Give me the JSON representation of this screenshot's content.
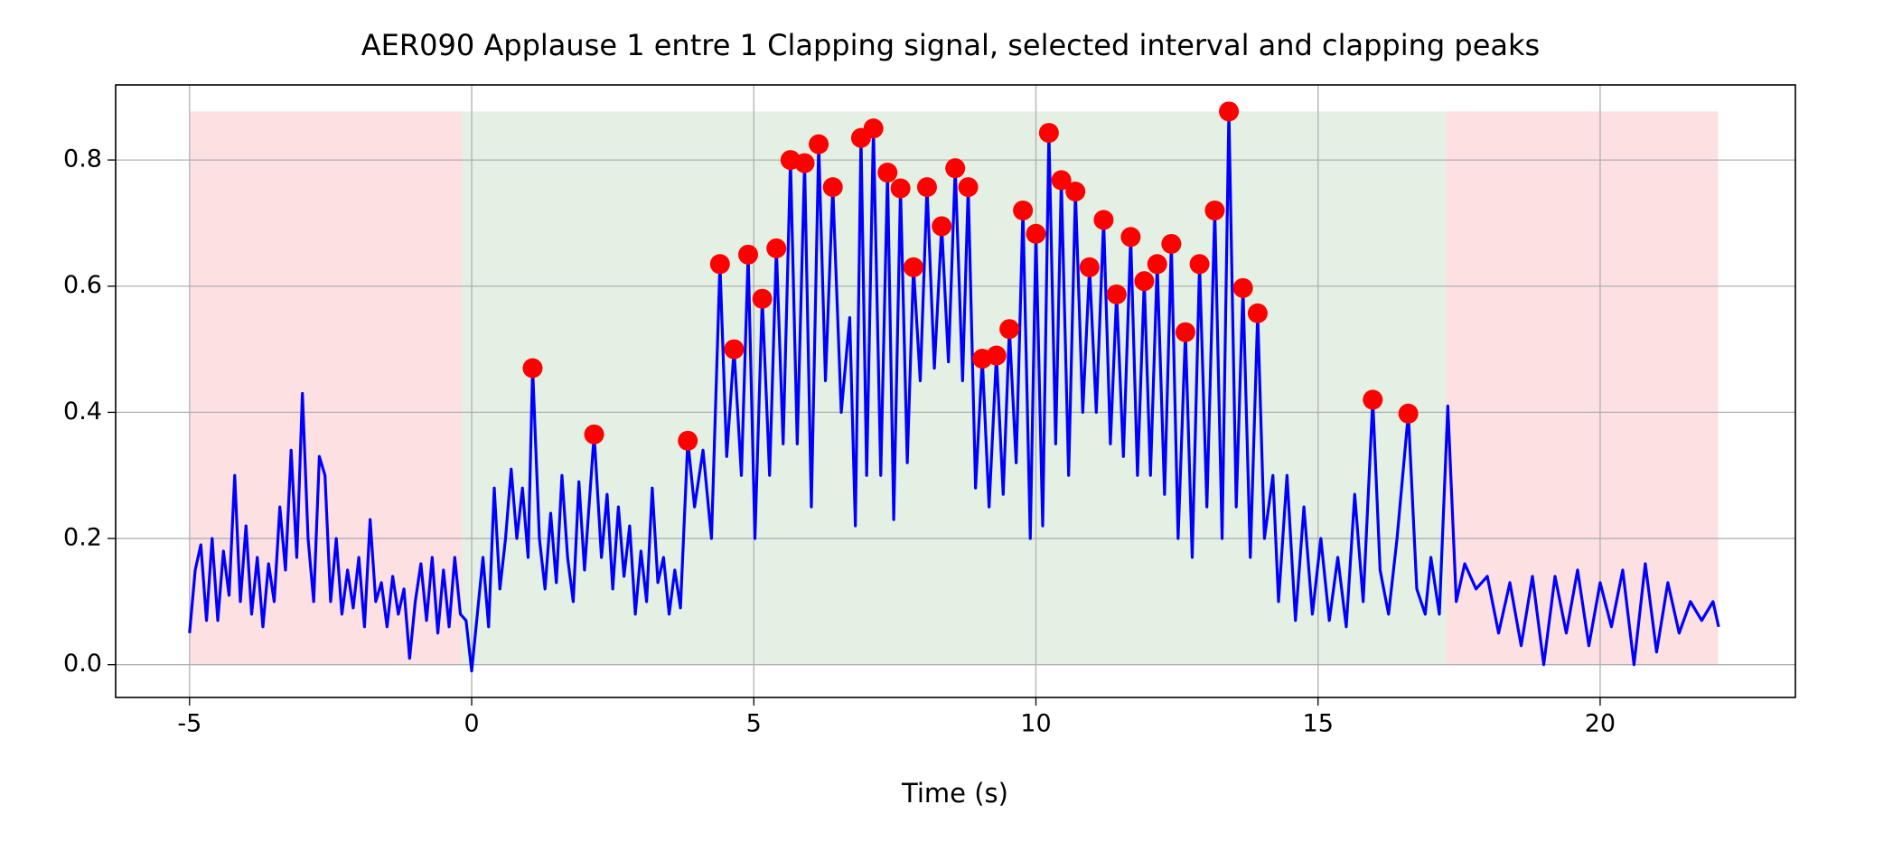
{
  "chart_data": {
    "type": "line",
    "title": "AER090 Applause 1 entre 1 Clapping signal, selected interval and clapping peaks",
    "xlabel": "Time (s)",
    "xlim": [
      -6.31,
      23.46
    ],
    "ylim": [
      -0.052,
      0.919
    ],
    "xticks": [
      -5,
      0,
      5,
      10,
      15,
      20
    ],
    "yticks": [
      {
        "value": 0,
        "label": "0.0"
      },
      0.2,
      0.4,
      0.6,
      0.8
    ],
    "grid": true,
    "shaded_regions": [
      {
        "x": [
          -5,
          -0.17
        ],
        "y": [
          0,
          0.877
        ],
        "color": "#fde0e2"
      },
      {
        "x": [
          -0.17,
          17.27
        ],
        "y": [
          0,
          0.877
        ],
        "color": "#e4f0e3"
      },
      {
        "x": [
          17.27,
          22.09
        ],
        "y": [
          0,
          0.877
        ],
        "color": "#fde0e2"
      }
    ],
    "series": [
      {
        "type": "line",
        "color": "#0000ff",
        "x": [
          -5,
          -4.9,
          -4.8,
          -4.7,
          -4.6,
          -4.5,
          -4.4,
          -4.3,
          -4.2,
          -4.1,
          -4.0,
          -3.9,
          -3.8,
          -3.7,
          -3.6,
          -3.5,
          -3.4,
          -3.3,
          -3.2,
          -3.1,
          -3.0,
          -2.9,
          -2.8,
          -2.7,
          -2.6,
          -2.5,
          -2.4,
          -2.3,
          -2.2,
          -2.1,
          -2.0,
          -1.9,
          -1.8,
          -1.7,
          -1.6,
          -1.5,
          -1.4,
          -1.3,
          -1.2,
          -1.1,
          -1.0,
          -0.9,
          -0.8,
          -0.7,
          -0.6,
          -0.5,
          -0.4,
          -0.3,
          -0.2,
          -0.1,
          0.0,
          0.1,
          0.2,
          0.3,
          0.4,
          0.5,
          0.6,
          0.7,
          0.8,
          0.9,
          1.0,
          1.08,
          1.2,
          1.3,
          1.4,
          1.5,
          1.6,
          1.7,
          1.8,
          1.9,
          2.0,
          2.17,
          2.3,
          2.4,
          2.5,
          2.6,
          2.7,
          2.8,
          2.9,
          3.0,
          3.1,
          3.2,
          3.3,
          3.4,
          3.5,
          3.6,
          3.7,
          3.83,
          3.95,
          4.1,
          4.25,
          4.4,
          4.52,
          4.65,
          4.78,
          4.9,
          5.02,
          5.15,
          5.28,
          5.4,
          5.52,
          5.65,
          5.77,
          5.9,
          6.02,
          6.15,
          6.27,
          6.4,
          6.55,
          6.7,
          6.8,
          6.9,
          7.0,
          7.12,
          7.25,
          7.37,
          7.48,
          7.6,
          7.72,
          7.83,
          7.95,
          8.07,
          8.2,
          8.33,
          8.45,
          8.57,
          8.7,
          8.8,
          8.93,
          9.05,
          9.17,
          9.3,
          9.42,
          9.53,
          9.65,
          9.77,
          9.9,
          10.0,
          10.12,
          10.23,
          10.35,
          10.45,
          10.58,
          10.7,
          10.83,
          10.95,
          11.07,
          11.2,
          11.32,
          11.43,
          11.55,
          11.68,
          11.8,
          11.92,
          12.03,
          12.15,
          12.28,
          12.4,
          12.52,
          12.65,
          12.77,
          12.9,
          13.03,
          13.17,
          13.3,
          13.42,
          13.55,
          13.67,
          13.8,
          13.93,
          14.05,
          14.2,
          14.3,
          14.45,
          14.6,
          14.75,
          14.9,
          15.05,
          15.2,
          15.35,
          15.5,
          15.65,
          15.8,
          15.97,
          16.1,
          16.25,
          16.4,
          16.6,
          16.75,
          16.9,
          17.0,
          17.15,
          17.3,
          17.45,
          17.6,
          17.8,
          18.0,
          18.2,
          18.4,
          18.6,
          18.8,
          19.0,
          19.2,
          19.4,
          19.6,
          19.8,
          20.0,
          20.2,
          20.4,
          20.6,
          20.8,
          21.0,
          21.2,
          21.4,
          21.6,
          21.8,
          22.0,
          22.1
        ],
        "y": [
          0.05,
          0.15,
          0.19,
          0.07,
          0.2,
          0.07,
          0.18,
          0.11,
          0.3,
          0.1,
          0.22,
          0.08,
          0.17,
          0.06,
          0.16,
          0.1,
          0.25,
          0.15,
          0.34,
          0.17,
          0.43,
          0.2,
          0.1,
          0.33,
          0.3,
          0.1,
          0.2,
          0.08,
          0.15,
          0.09,
          0.17,
          0.06,
          0.23,
          0.1,
          0.13,
          0.06,
          0.14,
          0.08,
          0.12,
          0.01,
          0.1,
          0.16,
          0.07,
          0.17,
          0.05,
          0.15,
          0.06,
          0.17,
          0.08,
          0.07,
          -0.01,
          0.08,
          0.17,
          0.06,
          0.28,
          0.12,
          0.2,
          0.31,
          0.2,
          0.28,
          0.17,
          0.47,
          0.2,
          0.12,
          0.24,
          0.13,
          0.3,
          0.17,
          0.1,
          0.29,
          0.15,
          0.365,
          0.17,
          0.27,
          0.12,
          0.25,
          0.14,
          0.22,
          0.08,
          0.18,
          0.1,
          0.28,
          0.13,
          0.17,
          0.08,
          0.15,
          0.09,
          0.355,
          0.25,
          0.34,
          0.2,
          0.635,
          0.33,
          0.5,
          0.3,
          0.65,
          0.2,
          0.58,
          0.3,
          0.66,
          0.35,
          0.8,
          0.35,
          0.795,
          0.25,
          0.825,
          0.45,
          0.757,
          0.4,
          0.55,
          0.22,
          0.835,
          0.3,
          0.85,
          0.3,
          0.78,
          0.23,
          0.755,
          0.32,
          0.63,
          0.45,
          0.757,
          0.47,
          0.695,
          0.48,
          0.787,
          0.45,
          0.757,
          0.28,
          0.485,
          0.25,
          0.49,
          0.27,
          0.532,
          0.32,
          0.72,
          0.2,
          0.683,
          0.22,
          0.843,
          0.35,
          0.768,
          0.3,
          0.75,
          0.4,
          0.63,
          0.4,
          0.705,
          0.35,
          0.587,
          0.33,
          0.678,
          0.3,
          0.608,
          0.3,
          0.635,
          0.27,
          0.667,
          0.2,
          0.527,
          0.17,
          0.635,
          0.25,
          0.72,
          0.2,
          0.877,
          0.25,
          0.597,
          0.17,
          0.557,
          0.2,
          0.3,
          0.1,
          0.3,
          0.07,
          0.25,
          0.08,
          0.2,
          0.07,
          0.17,
          0.06,
          0.27,
          0.1,
          0.42,
          0.15,
          0.08,
          0.2,
          0.398,
          0.12,
          0.08,
          0.17,
          0.08,
          0.41,
          0.1,
          0.16,
          0.12,
          0.14,
          0.05,
          0.13,
          0.03,
          0.14,
          0.0,
          0.14,
          0.05,
          0.15,
          0.03,
          0.13,
          0.06,
          0.15,
          0.0,
          0.16,
          0.02,
          0.13,
          0.05,
          0.1,
          0.07,
          0.1,
          0.06
        ]
      },
      {
        "type": "scatter",
        "color": "#ff0000",
        "x": [
          1.08,
          2.17,
          3.83,
          4.4,
          4.65,
          4.9,
          5.15,
          5.4,
          5.65,
          5.9,
          6.15,
          6.4,
          6.9,
          7.12,
          7.37,
          7.6,
          7.83,
          8.07,
          8.33,
          8.57,
          8.8,
          9.05,
          9.3,
          9.53,
          9.77,
          10.0,
          10.23,
          10.45,
          10.7,
          10.95,
          11.2,
          11.43,
          11.68,
          11.92,
          12.15,
          12.4,
          12.65,
          12.9,
          13.17,
          13.42,
          13.67,
          13.93,
          15.97,
          16.6
        ],
        "y": [
          0.47,
          0.365,
          0.355,
          0.635,
          0.5,
          0.65,
          0.58,
          0.66,
          0.8,
          0.795,
          0.825,
          0.757,
          0.835,
          0.85,
          0.78,
          0.755,
          0.63,
          0.757,
          0.695,
          0.787,
          0.757,
          0.485,
          0.49,
          0.532,
          0.72,
          0.683,
          0.843,
          0.768,
          0.75,
          0.63,
          0.705,
          0.587,
          0.678,
          0.608,
          0.635,
          0.667,
          0.527,
          0.635,
          0.72,
          0.877,
          0.597,
          0.557,
          0.42,
          0.398
        ]
      }
    ]
  }
}
